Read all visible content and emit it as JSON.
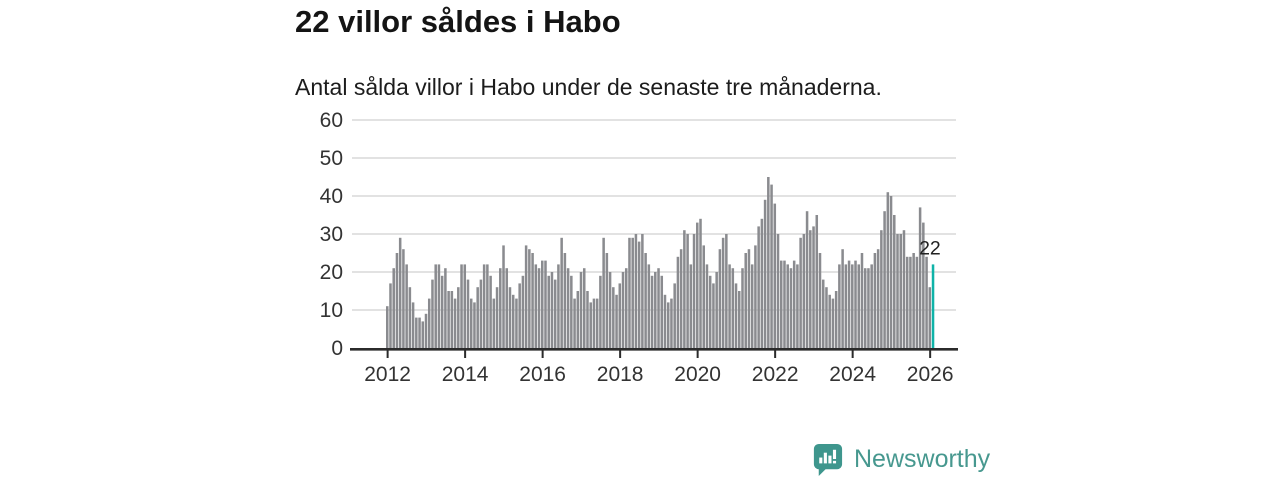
{
  "header": {
    "title": "22 villor såldes i Habo",
    "subtitle": "Antal sålda villor i Habo under de senaste tre månaderna."
  },
  "chart_data": {
    "type": "bar",
    "title": "22 villor såldes i Habo",
    "subtitle": "Antal sålda villor i Habo under de senaste tre månaderna.",
    "xlabel": "",
    "ylabel": "",
    "ylim": [
      0,
      60
    ],
    "y_ticks": [
      0,
      10,
      20,
      30,
      40,
      50,
      60
    ],
    "x_tick_years": [
      2012,
      2014,
      2016,
      2018,
      2020,
      2022,
      2024,
      2026
    ],
    "start_month": "2012-01",
    "end_month": "2026-02",
    "grid": true,
    "legend": false,
    "values": [
      11,
      17,
      21,
      25,
      29,
      26,
      22,
      16,
      12,
      8,
      8,
      7,
      9,
      13,
      18,
      22,
      22,
      19,
      21,
      15,
      15,
      13,
      16,
      22,
      22,
      18,
      13,
      12,
      16,
      18,
      22,
      22,
      19,
      13,
      16,
      21,
      27,
      21,
      16,
      14,
      13,
      17,
      19,
      27,
      26,
      25,
      22,
      21,
      23,
      23,
      19,
      20,
      18,
      22,
      29,
      25,
      21,
      19,
      13,
      15,
      20,
      21,
      15,
      12,
      13,
      13,
      19,
      29,
      25,
      20,
      16,
      14,
      17,
      20,
      21,
      29,
      29,
      30,
      28,
      30,
      25,
      22,
      19,
      20,
      21,
      19,
      14,
      12,
      13,
      17,
      24,
      26,
      31,
      30,
      22,
      30,
      33,
      34,
      27,
      22,
      19,
      17,
      20,
      26,
      29,
      30,
      22,
      21,
      17,
      15,
      21,
      25,
      26,
      22,
      27,
      32,
      34,
      39,
      45,
      43,
      38,
      30,
      23,
      23,
      22,
      21,
      23,
      22,
      29,
      30,
      36,
      31,
      32,
      35,
      25,
      18,
      16,
      14,
      13,
      15,
      22,
      26,
      22,
      23,
      22,
      23,
      22,
      25,
      21,
      21,
      22,
      25,
      26,
      31,
      36,
      41,
      40,
      35,
      30,
      30,
      31,
      24,
      24,
      25,
      24,
      37,
      33,
      24,
      16,
      22
    ],
    "highlight_index": 169,
    "annotation": {
      "text": "22"
    },
    "colors": {
      "bar": "#8a8b8f",
      "highlight": "#0fb3a8",
      "grid": "#d9d9d9",
      "axis": "#2b2b2b",
      "tick_text": "#333333",
      "annotation_text": "#222222"
    }
  },
  "footer": {
    "brand": "Newsworthy",
    "logo_icon": "bar-chart-speech-bubble-icon",
    "brand_color": "#47988f",
    "icon_color": "#3e968d"
  }
}
